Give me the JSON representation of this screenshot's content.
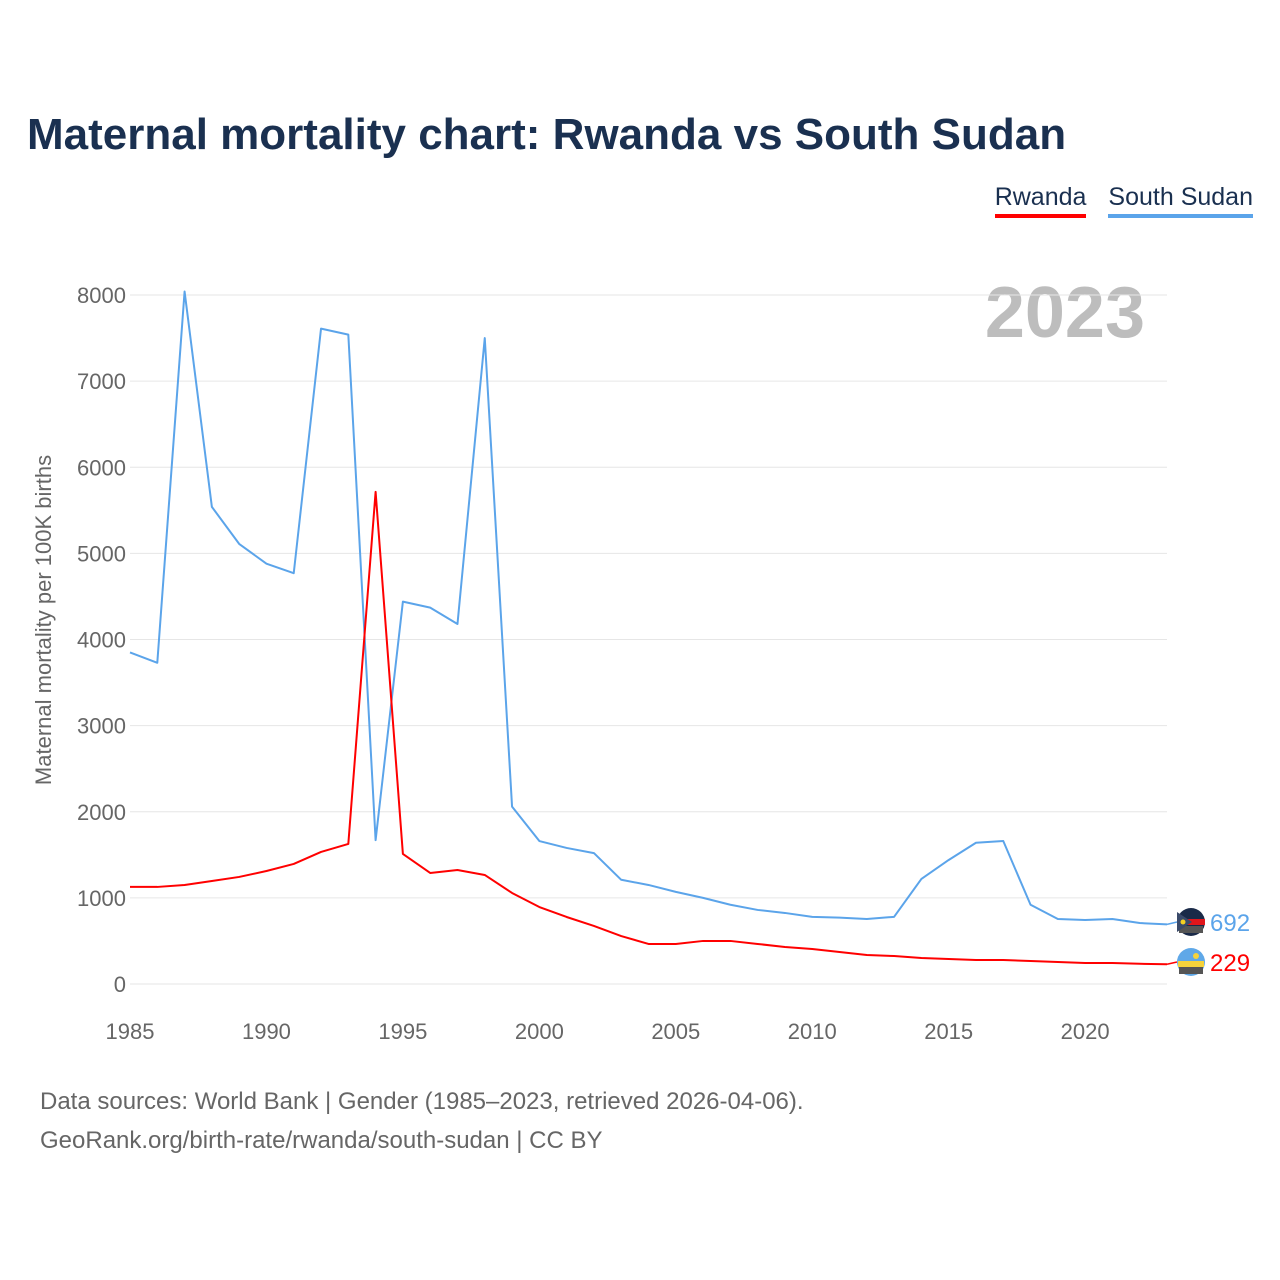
{
  "chart_data": {
    "type": "line",
    "title": "Maternal mortality chart: Rwanda vs South Sudan",
    "xlabel": "",
    "ylabel": "Maternal mortality per 100K births",
    "xlim": [
      1985,
      2023
    ],
    "ylim": [
      0,
      8000
    ],
    "grid": true,
    "legend_position": "top-right",
    "year_label": "2023",
    "x_ticks": [
      "1985",
      "1990",
      "1995",
      "2000",
      "2005",
      "2010",
      "2015",
      "2020"
    ],
    "y_ticks": [
      "0",
      "1000",
      "2000",
      "3000",
      "4000",
      "5000",
      "6000",
      "7000",
      "8000"
    ],
    "x": [
      1985,
      1986,
      1987,
      1988,
      1989,
      1990,
      1991,
      1992,
      1993,
      1994,
      1995,
      1996,
      1997,
      1998,
      1999,
      2000,
      2001,
      2002,
      2003,
      2004,
      2005,
      2006,
      2007,
      2008,
      2009,
      2010,
      2011,
      2012,
      2013,
      2014,
      2015,
      2016,
      2017,
      2018,
      2019,
      2020,
      2021,
      2022,
      2023
    ],
    "series": [
      {
        "name": "Rwanda",
        "color": "#ff0000",
        "end_label": "229",
        "values": [
          1127,
          1127,
          1150,
          1196,
          1243,
          1312,
          1394,
          1533,
          1626,
          5714,
          1510,
          1289,
          1324,
          1266,
          1057,
          894,
          778,
          674,
          557,
          465,
          465,
          500,
          500,
          465,
          430,
          406,
          372,
          337,
          325,
          302,
          290,
          279,
          279,
          267,
          256,
          244,
          244,
          235,
          229
        ]
      },
      {
        "name": "South Sudan",
        "color": "#5ba4ea",
        "end_label": "692",
        "values": [
          3850,
          3730,
          8040,
          5540,
          5110,
          4880,
          4770,
          7610,
          7540,
          1670,
          4440,
          4370,
          4180,
          7500,
          2060,
          1660,
          1580,
          1520,
          1210,
          1150,
          1070,
          1000,
          920,
          860,
          825,
          780,
          770,
          755,
          780,
          1220,
          1440,
          1640,
          1660,
          920,
          755,
          743,
          755,
          708,
          692
        ]
      }
    ]
  },
  "sources": {
    "line1": "Data sources: World Bank | Gender (1985–2023, retrieved 2026-04-06).",
    "line2": "GeoRank.org/birth-rate/rwanda/south-sudan | CC BY"
  }
}
